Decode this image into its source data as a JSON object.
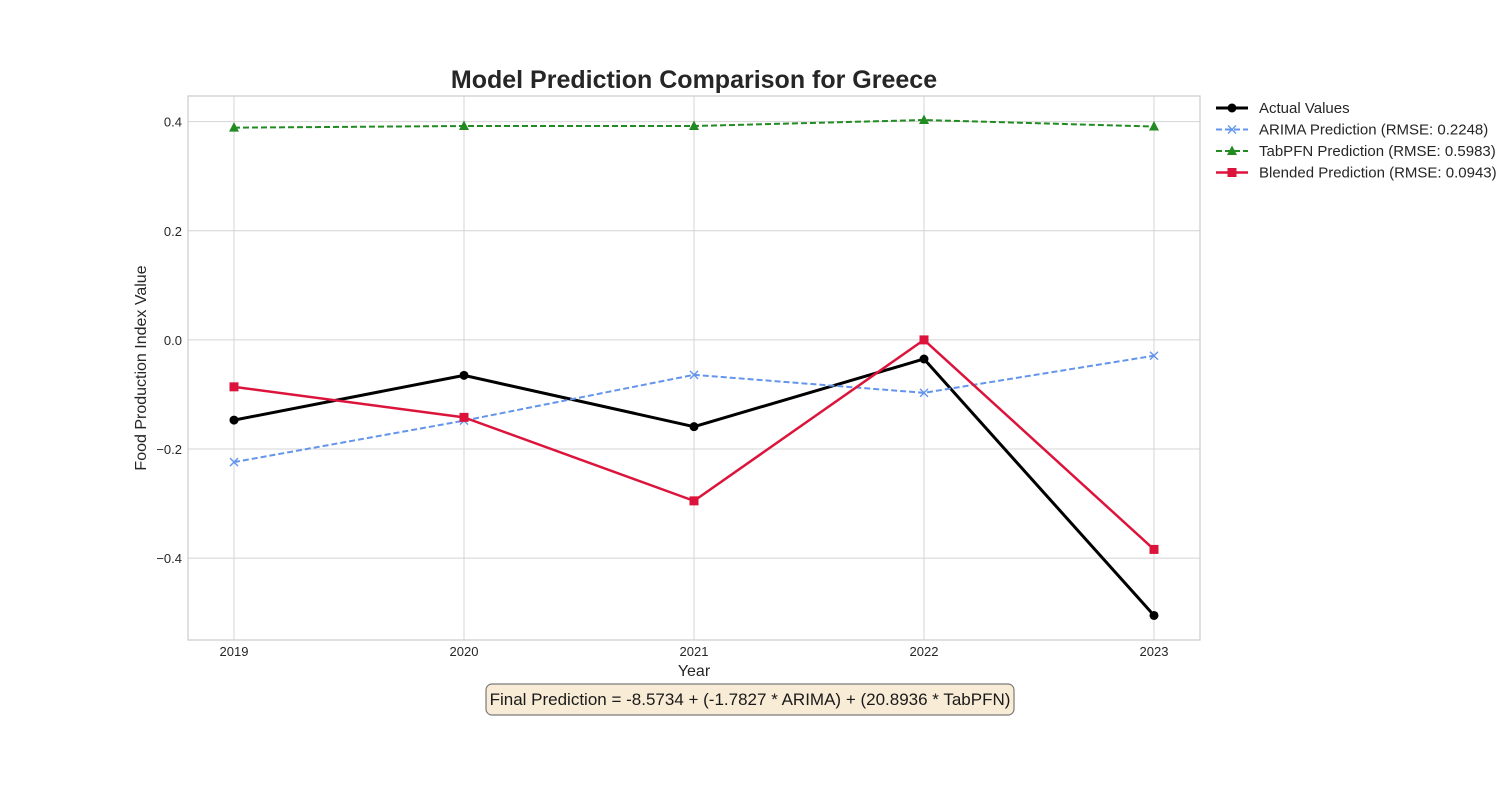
{
  "chart_data": {
    "type": "line",
    "title": "Model Prediction Comparison for Greece",
    "xlabel": "Year",
    "ylabel": "Food Production Index Value",
    "x": [
      2019,
      2020,
      2021,
      2022,
      2023
    ],
    "xlim": [
      2018.8,
      2023.2
    ],
    "ylim": [
      -0.55,
      0.447
    ],
    "yticks": [
      -0.4,
      -0.2,
      0.0,
      0.2,
      0.4
    ],
    "ytick_labels": [
      "−0.4",
      "−0.2",
      "0.0",
      "0.2",
      "0.4"
    ],
    "grid": true,
    "legend_position": "outside-right-top",
    "series": [
      {
        "name": "Actual Values",
        "values": [
          -0.147,
          -0.065,
          -0.159,
          -0.035,
          -0.505
        ],
        "color": "#000000",
        "dash": "solid",
        "marker": "circle",
        "width": 3
      },
      {
        "name": "ARIMA Prediction (RMSE: 0.2248)",
        "values": [
          -0.224,
          -0.148,
          -0.064,
          -0.097,
          -0.029
        ],
        "color": "#6495ed",
        "dash": "dashed",
        "marker": "x",
        "width": 2
      },
      {
        "name": "TabPFN Prediction (RMSE: 0.5983)",
        "values": [
          0.389,
          0.392,
          0.392,
          0.403,
          0.391
        ],
        "color": "#228b22",
        "dash": "dashed",
        "marker": "triangle",
        "width": 2
      },
      {
        "name": "Blended Prediction (RMSE: 0.0943)",
        "values": [
          -0.086,
          -0.142,
          -0.295,
          0.0,
          -0.384
        ],
        "color": "#dc143c",
        "dash": "solid",
        "marker": "square",
        "width": 2.5
      }
    ],
    "annotation": "Final Prediction = -8.5734 + (-1.7827 * ARIMA) + (20.8936 * TabPFN)"
  }
}
